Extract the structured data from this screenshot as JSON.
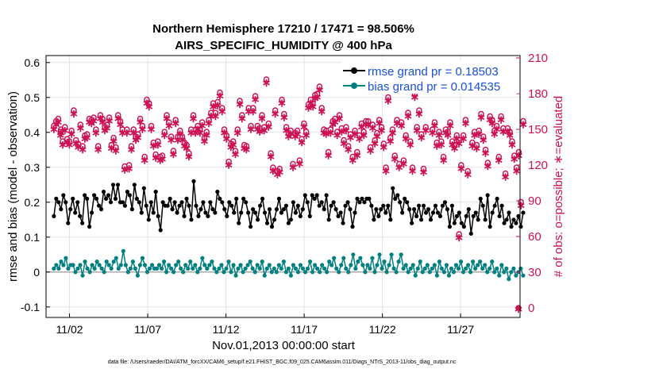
{
  "chart_data": {
    "type": "line",
    "title": "Northern Hemisphere 17210 / 17471 = 98.506%",
    "subtitle": "AIRS_SPECIFIC_HUMIDITY @ 400 hPa",
    "xlabel": "Nov.01,2013 00:00:00 start",
    "ylabel": "rmse and bias (model - observation)",
    "y2label": "# of obs: o=possible; ∗=evaluated",
    "ylim": [
      -0.13,
      0.62
    ],
    "y2lim": [
      -8,
      212
    ],
    "xlim": [
      0.5,
      30.8
    ],
    "yticks": [
      -0.1,
      0,
      0.1,
      0.2,
      0.3,
      0.4,
      0.5,
      0.6
    ],
    "yticklabels": [
      "-0.1",
      "0",
      "0.1",
      "0.2",
      "0.3",
      "0.4",
      "0.5",
      "0.6"
    ],
    "y2ticks": [
      0,
      30,
      60,
      90,
      120,
      150,
      180,
      210
    ],
    "xticks": [
      2,
      7,
      12,
      17,
      22,
      27
    ],
    "xticklabels": [
      "11/02",
      "11/07",
      "11/12",
      "11/17",
      "11/22",
      "11/27"
    ],
    "grid": true,
    "legend_position": "top-right",
    "colors": {
      "rmse": "#000000",
      "bias": "#008080",
      "obs": "#cc1155",
      "zero_line": "#aaaaaa"
    },
    "series": [
      {
        "name": "rmse grand pr = 0.18503",
        "axis": "left",
        "values": [
          0.16,
          0.21,
          0.2,
          0.18,
          0.22,
          0.2,
          0.14,
          0.18,
          0.21,
          0.17,
          0.2,
          0.16,
          0.14,
          0.22,
          0.21,
          0.13,
          0.17,
          0.22,
          0.21,
          0.19,
          0.18,
          0.23,
          0.21,
          0.22,
          0.2,
          0.25,
          0.21,
          0.25,
          0.2,
          0.2,
          0.19,
          0.23,
          0.22,
          0.18,
          0.25,
          0.21,
          0.2,
          0.17,
          0.24,
          0.19,
          0.15,
          0.2,
          0.17,
          0.23,
          0.16,
          0.12,
          0.2,
          0.19,
          0.19,
          0.21,
          0.18,
          0.2,
          0.17,
          0.19,
          0.2,
          0.16,
          0.21,
          0.19,
          0.15,
          0.26,
          0.19,
          0.16,
          0.18,
          0.2,
          0.17,
          0.16,
          0.2,
          0.18,
          0.17,
          0.23,
          0.21,
          0.2,
          0.18,
          0.16,
          0.2,
          0.19,
          0.17,
          0.21,
          0.14,
          0.17,
          0.21,
          0.2,
          0.17,
          0.13,
          0.18,
          0.17,
          0.15,
          0.19,
          0.21,
          0.17,
          0.14,
          0.18,
          0.13,
          0.15,
          0.18,
          0.21,
          0.17,
          0.18,
          0.19,
          0.14,
          0.15,
          0.2,
          0.17,
          0.19,
          0.16,
          0.18,
          0.22,
          0.2,
          0.16,
          0.22,
          0.21,
          0.22,
          0.19,
          0.2,
          0.18,
          0.22,
          0.15,
          0.19,
          0.2,
          0.18,
          0.16,
          0.17,
          0.14,
          0.19,
          0.2,
          0.18,
          0.13,
          0.17,
          0.21,
          0.2,
          0.21,
          0.2,
          0.21,
          0.21,
          0.19,
          0.15,
          0.18,
          0.16,
          0.18,
          0.19,
          0.17,
          0.19,
          0.15,
          0.24,
          0.21,
          0.22,
          0.2,
          0.17,
          0.21,
          0.2,
          0.18,
          0.14,
          0.18,
          0.16,
          0.19,
          0.15,
          0.19,
          0.17,
          0.18,
          0.15,
          0.17,
          0.19,
          0.17,
          0.16,
          0.19,
          0.2,
          0.18,
          0.13,
          0.19,
          0.14,
          0.16,
          0.17,
          0.14,
          0.13,
          0.16,
          0.18,
          0.11,
          0.16,
          0.17,
          0.15,
          0.21,
          0.19,
          0.15,
          0.22,
          0.13,
          0.17,
          0.19,
          0.21,
          0.16,
          0.19,
          0.14,
          0.15,
          0.17,
          0.13,
          0.15,
          0.14,
          0.16,
          0.13,
          0.17
        ],
        "style": "black line with filled circle markers"
      },
      {
        "name": "bias grand pr = 0.014535",
        "axis": "left",
        "values": [
          0.01,
          0.02,
          0.01,
          0.03,
          0.02,
          0.04,
          0.01,
          0.02,
          0.02,
          0.0,
          0.01,
          0.02,
          -0.01,
          0.03,
          0.01,
          0.0,
          0.02,
          0.01,
          0.03,
          0.02,
          0.01,
          0.0,
          0.03,
          0.02,
          0.01,
          0.03,
          0.04,
          0.01,
          0.02,
          0.06,
          0.02,
          0.0,
          0.01,
          0.03,
          0.01,
          -0.01,
          0.02,
          0.04,
          0.02,
          0.0,
          0.01,
          0.02,
          0.01,
          0.01,
          0.02,
          0.01,
          0.03,
          0.0,
          0.02,
          0.01,
          0.0,
          0.02,
          0.03,
          0.01,
          0.0,
          0.02,
          0.01,
          0.03,
          0.01,
          0.02,
          0.0,
          0.01,
          0.04,
          0.02,
          0.01,
          0.02,
          0.03,
          0.01,
          0.0,
          0.01,
          0.02,
          0.0,
          0.01,
          0.03,
          0.0,
          0.02,
          -0.01,
          0.01,
          0.02,
          0.0,
          0.01,
          0.02,
          0.03,
          0.01,
          0.0,
          0.02,
          0.01,
          0.03,
          -0.01,
          0.01,
          0.02,
          0.0,
          0.01,
          0.0,
          0.02,
          0.01,
          0.03,
          0.0,
          0.01,
          -0.01,
          0.02,
          0.01,
          0.0,
          0.02,
          0.01,
          0.0,
          0.01,
          0.03,
          0.0,
          0.02,
          0.01,
          0.0,
          0.02,
          0.01,
          0.0,
          0.03,
          0.02,
          0.04,
          0.01,
          0.0,
          0.02,
          0.04,
          0.01,
          0.0,
          0.02,
          0.05,
          0.01,
          0.03,
          0.04,
          0.02,
          0.0,
          0.02,
          0.01,
          0.04,
          0.0,
          0.02,
          0.05,
          0.01,
          0.03,
          0.0,
          0.02,
          0.05,
          0.01,
          0.0,
          0.03,
          0.05,
          0.01,
          0.02,
          0.0,
          0.01,
          0.02,
          -0.01,
          0.01,
          0.03,
          0.0,
          0.01,
          0.02,
          0.0,
          0.01,
          0.02,
          -0.01,
          0.03,
          0.01,
          0.0,
          0.02,
          -0.01,
          0.01,
          0.0,
          0.02,
          0.01,
          0.03,
          0.0,
          0.01,
          0.02,
          0.0,
          0.03,
          0.01,
          0.02,
          0.03,
          0.01,
          0.02,
          0.0,
          0.01,
          0.03,
          0.0,
          0.01,
          -0.01,
          0.02,
          0.0,
          0.01,
          -0.02,
          0.0,
          0.01,
          -0.01,
          0.0,
          0.01,
          -0.01
        ],
        "style": "teal line with filled circle markers"
      }
    ],
    "obs_series": {
      "name": "# of obs",
      "axis": "right",
      "possible": [
        153,
        157,
        159,
        148,
        140,
        152,
        142,
        140,
        149,
        166,
        141,
        138,
        154,
        136,
        145,
        146,
        159,
        158,
        160,
        150,
        136,
        162,
        159,
        152,
        154,
        160,
        137,
        143,
        135,
        162,
        157,
        150,
        119,
        150,
        120,
        136,
        150,
        144,
        146,
        159,
        153,
        127,
        175,
        172,
        153,
        139,
        129,
        140,
        127,
        128,
        148,
        162,
        156,
        144,
        132,
        158,
        144,
        149,
        144,
        139,
        137,
        130,
        150,
        162,
        150,
        153,
        150,
        156,
        143,
        148,
        158,
        164,
        172,
        164,
        173,
        181,
        168,
        150,
        145,
        123,
        138,
        140,
        132,
        150,
        174,
        162,
        137,
        136,
        168,
        153,
        168,
        178,
        153,
        151,
        162,
        152,
        192,
        155,
        130,
        118,
        166,
        115,
        117,
        175,
        163,
        152,
        147,
        149,
        121,
        147,
        149,
        124,
        142,
        155,
        148,
        171,
        175,
        172,
        179,
        180,
        186,
        168,
        150,
        149,
        131,
        150,
        157,
        159,
        148,
        162,
        151,
        141,
        152,
        136,
        146,
        127,
        149,
        131,
        145,
        155,
        148,
        157,
        157,
        135,
        154,
        141,
        147,
        158,
        152,
        138,
        118,
        177,
        143,
        150,
        128,
        158,
        121,
        156,
        124,
        145,
        164,
        140,
        118,
        180,
        152,
        166,
        146,
        117,
        152,
        193,
        194,
        150,
        156,
        139,
        148,
        140,
        127,
        150,
        148,
        156,
        140,
        137,
        145,
        141,
        120,
        145,
        158,
        115,
        192,
        139,
        148,
        137,
        149,
        163,
        144,
        133,
        122,
        161,
        158,
        149,
        153,
        127,
        161,
        151,
        113,
        151,
        148,
        140,
        128,
        118,
        131,
        89,
        157
      ],
      "evaluated": [
        151,
        155,
        157,
        146,
        138,
        150,
        140,
        138,
        147,
        164,
        139,
        136,
        152,
        134,
        143,
        144,
        157,
        156,
        158,
        148,
        134,
        160,
        157,
        150,
        152,
        158,
        135,
        141,
        133,
        160,
        155,
        148,
        117,
        148,
        118,
        134,
        148,
        142,
        144,
        157,
        151,
        125,
        173,
        170,
        151,
        137,
        127,
        138,
        125,
        126,
        146,
        160,
        154,
        142,
        130,
        156,
        142,
        147,
        142,
        137,
        135,
        128,
        148,
        160,
        148,
        151,
        148,
        154,
        141,
        146,
        156,
        162,
        170,
        162,
        171,
        179,
        166,
        148,
        143,
        121,
        136,
        138,
        130,
        148,
        172,
        160,
        135,
        134,
        166,
        151,
        166,
        176,
        151,
        149,
        160,
        150,
        190,
        153,
        128,
        116,
        164,
        113,
        115,
        173,
        161,
        150,
        145,
        147,
        119,
        145,
        147,
        122,
        140,
        153,
        146,
        169,
        173,
        170,
        177,
        178,
        184,
        166,
        148,
        147,
        129,
        148,
        155,
        157,
        146,
        160,
        149,
        139,
        150,
        134,
        144,
        125,
        147,
        129,
        143,
        153,
        146,
        155,
        155,
        133,
        152,
        139,
        145,
        156,
        150,
        136,
        116,
        175,
        141,
        148,
        126,
        156,
        119,
        154,
        122,
        143,
        162,
        138,
        116,
        178,
        150,
        164,
        144,
        115,
        150,
        191,
        192,
        148,
        154,
        137,
        146,
        138,
        125,
        148,
        146,
        154,
        138,
        135,
        143,
        139,
        118,
        143,
        156,
        113,
        190,
        137,
        146,
        135,
        147,
        161,
        142,
        131,
        120,
        159,
        156,
        147,
        151,
        125,
        159,
        149,
        111,
        149,
        146,
        138,
        126,
        116,
        129,
        87,
        155
      ],
      "extra_points": [
        {
          "x": 1.45,
          "possible": 150,
          "evaluated": 148
        },
        {
          "x": 26.9,
          "possible": 62,
          "evaluated": 60
        },
        {
          "x": 30.7,
          "possible": 0,
          "evaluated": 0
        }
      ]
    },
    "footnote": "data file: /Users/raeder/DAI/ATM_forcXX/CAM6_setup/f.e21.FHIST_BGC.f09_025.CAM6assim.011/Diags_NTrS_2013-11/obs_diag_output.nc"
  }
}
